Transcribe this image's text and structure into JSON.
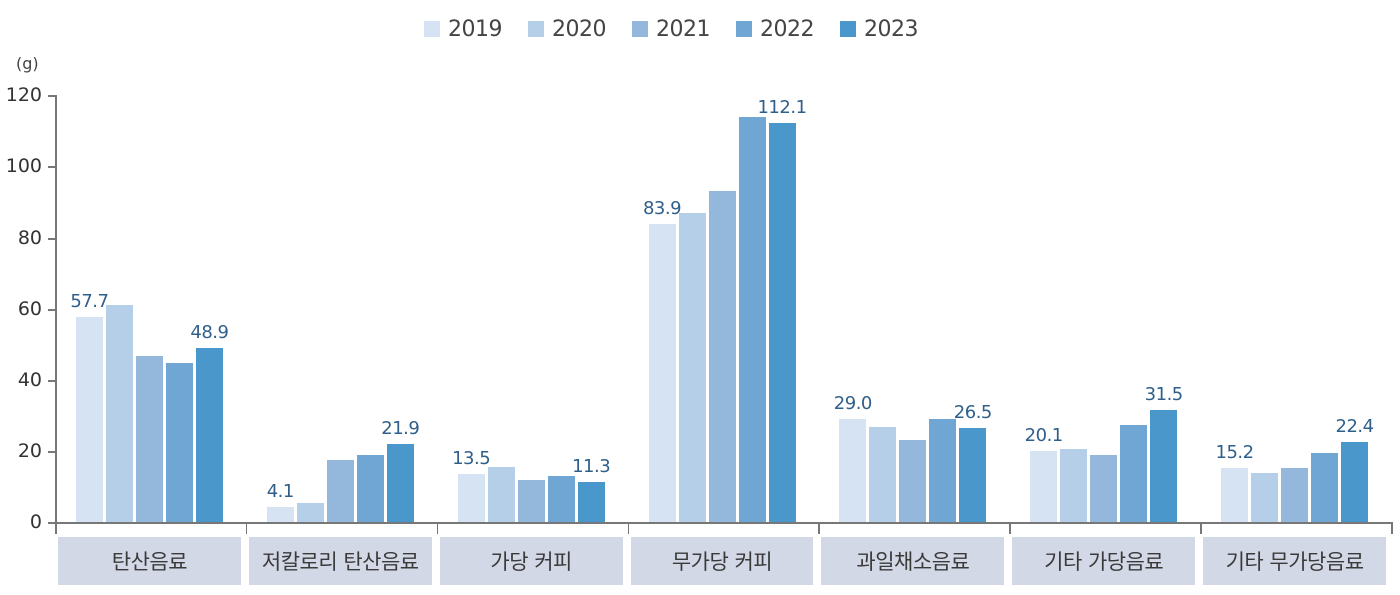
{
  "chart_data": {
    "type": "bar",
    "title": "",
    "xlabel": "",
    "ylabel": "(g)",
    "ylim": [
      0,
      120
    ],
    "yticks": [
      0,
      20,
      40,
      60,
      80,
      100,
      120
    ],
    "grid": false,
    "legend_position": "top",
    "categories": [
      "탄산음료",
      "저칼로리 탄산음료",
      "가당 커피",
      "무가당 커피",
      "과일채소음료",
      "기타 가당음료",
      "기타 무가당음료"
    ],
    "series": [
      {
        "name": "2019",
        "color": "#d6e3f2",
        "values": [
          57.7,
          4.1,
          13.5,
          83.9,
          29.0,
          20.1,
          15.2
        ]
      },
      {
        "name": "2020",
        "color": "#b6cfe9",
        "values": [
          61.0,
          5.3,
          15.5,
          87.0,
          26.7,
          20.6,
          13.8
        ]
      },
      {
        "name": "2021",
        "color": "#94b8dc",
        "values": [
          46.7,
          17.4,
          11.8,
          93.1,
          23.1,
          18.9,
          15.2
        ]
      },
      {
        "name": "2022",
        "color": "#6fa6d3",
        "values": [
          44.8,
          18.8,
          12.9,
          113.9,
          29.0,
          27.3,
          19.4
        ]
      },
      {
        "name": "2023",
        "color": "#4a97cc",
        "values": [
          48.9,
          21.9,
          11.3,
          112.1,
          26.5,
          31.5,
          22.4
        ]
      }
    ],
    "data_labels": [
      {
        "category": "탄산음료",
        "series": "2019",
        "text": "57.7"
      },
      {
        "category": "탄산음료",
        "series": "2023",
        "text": "48.9"
      },
      {
        "category": "저칼로리 탄산음료",
        "series": "2019",
        "text": "4.1"
      },
      {
        "category": "저칼로리 탄산음료",
        "series": "2023",
        "text": "21.9"
      },
      {
        "category": "가당 커피",
        "series": "2019",
        "text": "13.5"
      },
      {
        "category": "가당 커피",
        "series": "2023",
        "text": "11.3"
      },
      {
        "category": "무가당 커피",
        "series": "2019",
        "text": "83.9"
      },
      {
        "category": "무가당 커피",
        "series": "2023",
        "text": "112.1"
      },
      {
        "category": "과일채소음료",
        "series": "2019",
        "text": "29.0"
      },
      {
        "category": "과일채소음료",
        "series": "2023",
        "text": "26.5"
      },
      {
        "category": "기타 가당음료",
        "series": "2019",
        "text": "20.1"
      },
      {
        "category": "기타 가당음료",
        "series": "2023",
        "text": "31.5"
      },
      {
        "category": "기타 무가당음료",
        "series": "2019",
        "text": "15.2"
      },
      {
        "category": "기타 무가당음료",
        "series": "2023",
        "text": "22.4"
      }
    ]
  },
  "legend": {
    "items": [
      {
        "label": "2019",
        "color": "#d6e3f2"
      },
      {
        "label": "2020",
        "color": "#b6cfe9"
      },
      {
        "label": "2021",
        "color": "#94b8dc"
      },
      {
        "label": "2022",
        "color": "#6fa6d3"
      },
      {
        "label": "2023",
        "color": "#4a97cc"
      }
    ]
  },
  "axis": {
    "unit_label": "(g)",
    "y_tick_labels": [
      "0",
      "20",
      "40",
      "60",
      "80",
      "100",
      "120"
    ]
  },
  "colors": {
    "category_box": "#d3d8e6",
    "value_label": "#2f5f8a",
    "axis": "#777777"
  }
}
